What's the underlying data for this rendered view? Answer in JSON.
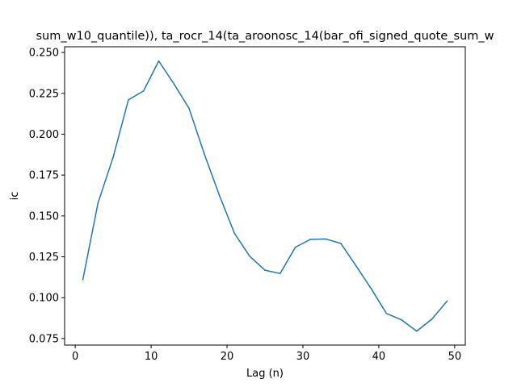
{
  "chart_data": {
    "type": "line",
    "title": "sum_w10_quantile)), ta_rocr_14(ta_aroonosc_14(bar_ofi_signed_quote_sum_w",
    "xlabel": "Lag (n)",
    "ylabel": "ic",
    "xlim": [
      -1.4,
      51.4
    ],
    "ylim": [
      0.071,
      0.2535
    ],
    "xticks": [
      0,
      10,
      20,
      30,
      40,
      50
    ],
    "xtick_labels": [
      "0",
      "10",
      "20",
      "30",
      "40",
      "50"
    ],
    "yticks": [
      0.075,
      0.1,
      0.125,
      0.15,
      0.175,
      0.2,
      0.225,
      0.25
    ],
    "ytick_labels": [
      "0.075",
      "0.100",
      "0.125",
      "0.150",
      "0.175",
      "0.200",
      "0.225",
      "0.250"
    ],
    "grid": false,
    "series": [
      {
        "color": "#1f77b4",
        "x": [
          1,
          3,
          5,
          7,
          9,
          11,
          13,
          15,
          17,
          19,
          21,
          23,
          25,
          27,
          29,
          31,
          33,
          35,
          37,
          39,
          41,
          43,
          45,
          47,
          49
        ],
        "y": [
          0.111,
          0.158,
          0.186,
          0.221,
          0.2265,
          0.2448,
          0.2308,
          0.2158,
          0.188,
          0.1625,
          0.1392,
          0.1253,
          0.1168,
          0.1148,
          0.1308,
          0.1357,
          0.1359,
          0.1332,
          0.1195,
          0.1055,
          0.0904,
          0.0864,
          0.0795,
          0.0869,
          0.0979
        ]
      }
    ]
  }
}
